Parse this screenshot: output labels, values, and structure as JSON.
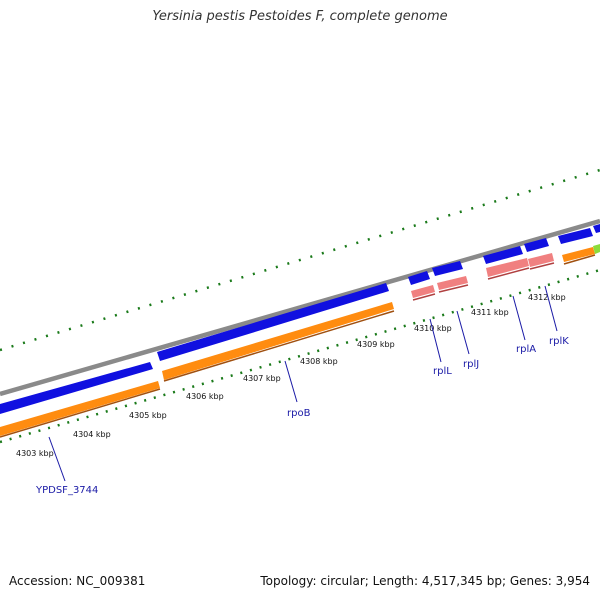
{
  "title": "Yersinia pestis Pestoides F, complete genome",
  "footer": {
    "accession": "Accession: NC_009381",
    "stats": "Topology: circular; Length: 4,517,345 bp; Genes: 3,954"
  },
  "kbp_labels": [
    "4303 kbp",
    "4304 kbp",
    "4305 kbp",
    "4306 kbp",
    "4307 kbp",
    "4308 kbp",
    "4309 kbp",
    "4310 kbp",
    "4311 kbp",
    "4312 kbp"
  ],
  "gene_labels": [
    "YPDSF_3744",
    "rpoB",
    "rplL",
    "rplJ",
    "rplA",
    "rplK"
  ],
  "colors": {
    "backbone": "#8a8a8a",
    "cds_forward": "#1010e0",
    "cds_reverse": "#ff8c10",
    "rna": "#f08080",
    "ticks": "#1a7a1a",
    "gene_label": "#1a1aa6"
  }
}
